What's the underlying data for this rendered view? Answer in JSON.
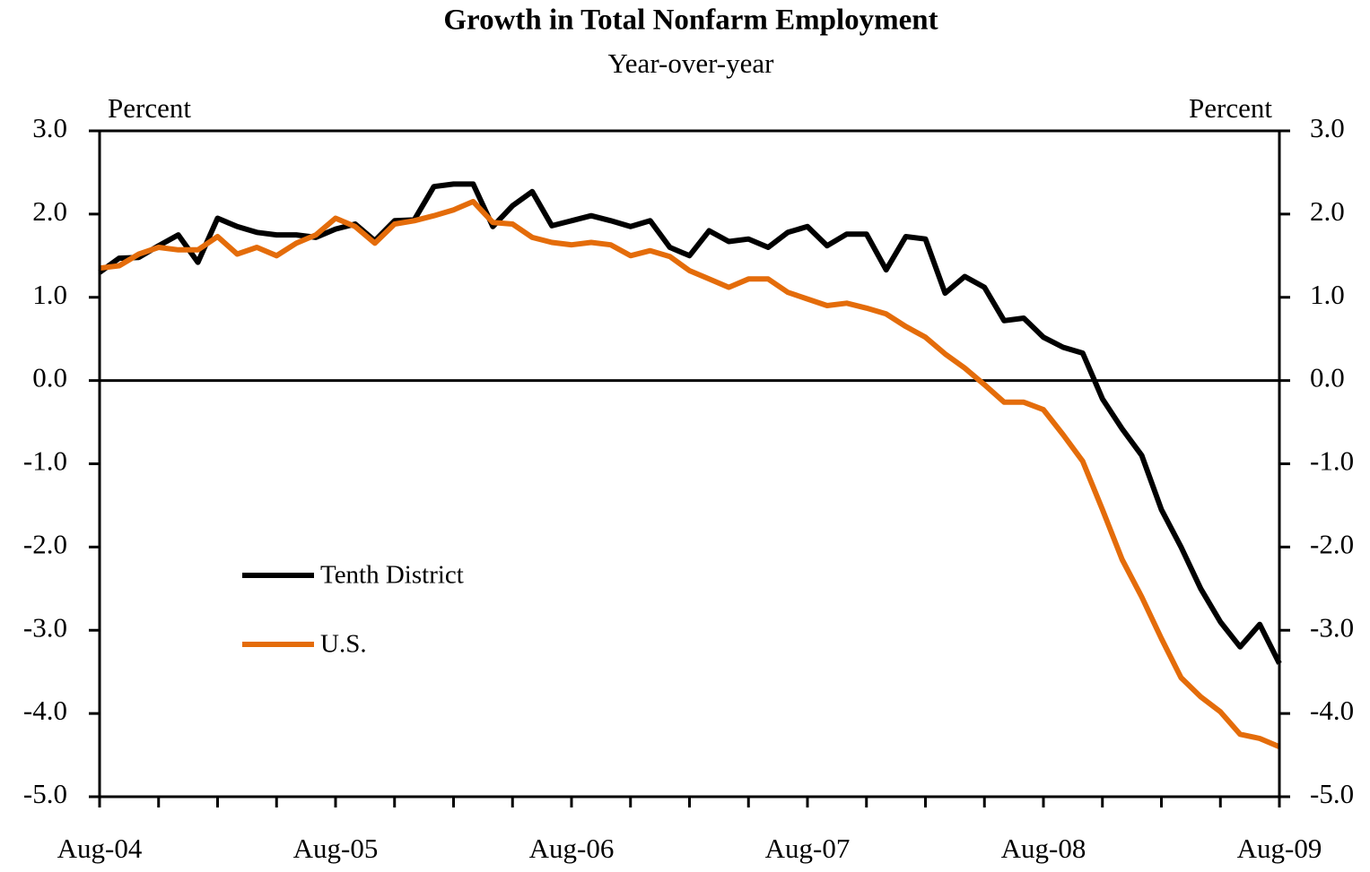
{
  "chart_data": {
    "type": "line",
    "title": "Growth in Total Nonfarm Employment",
    "subtitle": "Year-over-year",
    "y_label": "Percent",
    "y2_label": "Percent",
    "categories": [
      "Aug-04",
      null,
      null,
      null,
      null,
      null,
      null,
      null,
      null,
      null,
      null,
      null,
      "Aug-05",
      null,
      null,
      null,
      null,
      null,
      null,
      null,
      null,
      null,
      null,
      null,
      "Aug-06",
      null,
      null,
      null,
      null,
      null,
      null,
      null,
      null,
      null,
      null,
      null,
      "Aug-07",
      null,
      null,
      null,
      null,
      null,
      null,
      null,
      null,
      null,
      null,
      null,
      "Aug-08",
      null,
      null,
      null,
      null,
      null,
      null,
      null,
      null,
      null,
      null,
      null,
      "Aug-09"
    ],
    "series": [
      {
        "name": "Tenth District",
        "color": "#000000",
        "values": [
          1.3,
          1.47,
          1.48,
          1.62,
          1.75,
          1.42,
          1.95,
          1.85,
          1.78,
          1.75,
          1.75,
          1.72,
          1.82,
          1.88,
          1.68,
          1.92,
          1.93,
          2.33,
          2.36,
          2.36,
          1.85,
          2.1,
          2.27,
          1.86,
          1.92,
          1.98,
          1.92,
          1.85,
          1.92,
          1.6,
          1.5,
          1.8,
          1.67,
          1.7,
          1.6,
          1.78,
          1.85,
          1.62,
          1.76,
          1.76,
          1.33,
          1.73,
          1.7,
          1.05,
          1.25,
          1.12,
          0.72,
          0.75,
          0.52,
          0.4,
          0.33,
          -0.22,
          -0.58,
          -0.9,
          -1.55,
          -2.0,
          -2.5,
          -2.9,
          -3.2,
          -2.93,
          -3.4
        ]
      },
      {
        "name": "U.S.",
        "color": "#e46c0a",
        "values": [
          1.35,
          1.38,
          1.52,
          1.6,
          1.57,
          1.57,
          1.73,
          1.52,
          1.6,
          1.5,
          1.65,
          1.75,
          1.95,
          1.85,
          1.65,
          1.88,
          1.92,
          1.98,
          2.05,
          2.15,
          1.9,
          1.88,
          1.72,
          1.66,
          1.63,
          1.66,
          1.63,
          1.5,
          1.56,
          1.49,
          1.32,
          1.22,
          1.12,
          1.22,
          1.22,
          1.06,
          0.98,
          0.9,
          0.93,
          0.87,
          0.8,
          0.65,
          0.52,
          0.32,
          0.15,
          -0.05,
          -0.26,
          -0.26,
          -0.35,
          -0.65,
          -0.97,
          -1.55,
          -2.15,
          -2.6,
          -3.1,
          -3.57,
          -3.8,
          -3.98,
          -4.25,
          -4.3,
          -4.4
        ]
      }
    ],
    "ylim": [
      -5,
      3
    ],
    "yticks": [
      {
        "value": 3,
        "label": "3.0"
      },
      {
        "value": 2,
        "label": "2.0"
      },
      {
        "value": 1,
        "label": "1.0"
      },
      {
        "value": 0,
        "label": "0.0"
      },
      {
        "value": -1,
        "label": "-1.0"
      },
      {
        "value": -2,
        "label": "-2.0"
      },
      {
        "value": -3,
        "label": "-3.0"
      },
      {
        "value": -4,
        "label": "-4.0"
      },
      {
        "value": -5,
        "label": "-5.0"
      }
    ],
    "y2lim": [
      -5,
      3
    ],
    "y2ticks": [
      {
        "value": 3,
        "label": "3.0"
      },
      {
        "value": 2,
        "label": "2.0"
      },
      {
        "value": 1,
        "label": "1.0"
      },
      {
        "value": 0,
        "label": "0.0"
      },
      {
        "value": -1,
        "label": "-1.0"
      },
      {
        "value": -2,
        "label": "-2.0"
      },
      {
        "value": -3,
        "label": "-3.0"
      },
      {
        "value": -4,
        "label": "-4.0"
      },
      {
        "value": -5,
        "label": "-5.0"
      }
    ],
    "grid": false,
    "zero_line": true,
    "legend": "lower left"
  }
}
